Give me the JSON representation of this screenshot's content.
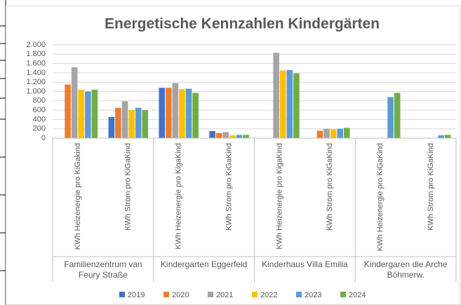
{
  "chart_data": {
    "type": "bar",
    "title": "Energetische Kennzahlen Kindergärten",
    "categories": [
      "KWh Heizenergie pro KiGakind",
      "KWh Strom pro KiGaKind",
      "KWh Heizenergie pro KigaKind",
      "KWh Strom pro KiGaKind",
      "KWh Heizenergie pro KigaKind",
      "KWh Strom pro KiGaKind",
      "KWh Heizenergie pro KiGaKind",
      "KWh Strom pro KiGaKind"
    ],
    "groups": [
      "Familienzentrum van Feury Straße",
      "Kindergarten Eggerfeld",
      "Kinderhaus Villa Emilia",
      "Kindergaren die Arche Böhmerw."
    ],
    "series": [
      {
        "name": "2019",
        "color": "#4472c4",
        "values": [
          null,
          450,
          1080,
          150,
          null,
          null,
          null,
          null
        ]
      },
      {
        "name": "2020",
        "color": "#ed7d31",
        "values": [
          1150,
          650,
          1080,
          110,
          null,
          160,
          null,
          null
        ]
      },
      {
        "name": "2021",
        "color": "#a5a5a5",
        "values": [
          1520,
          790,
          1180,
          130,
          1830,
          200,
          null,
          null
        ]
      },
      {
        "name": "2022",
        "color": "#ffc000",
        "values": [
          1040,
          600,
          1050,
          60,
          1450,
          190,
          null,
          null
        ]
      },
      {
        "name": "2023",
        "color": "#5b9bd5",
        "values": [
          1000,
          650,
          1060,
          70,
          1460,
          200,
          880,
          60
        ]
      },
      {
        "name": "2024",
        "color": "#70ad47",
        "values": [
          1040,
          600,
          970,
          70,
          1390,
          220,
          970,
          70
        ]
      }
    ],
    "ylim": [
      0,
      2000
    ],
    "yticks": [
      0,
      200,
      400,
      600,
      800,
      {
        "value": 1000,
        "label": "1.000"
      },
      {
        "value": 1200,
        "label": "1.200"
      },
      {
        "value": 1400,
        "label": "1.400"
      },
      {
        "value": 1600,
        "label": "1.600"
      },
      {
        "value": 1800,
        "label": "1.800"
      },
      {
        "value": 2000,
        "label": "2.000"
      }
    ],
    "legend": "bottom"
  }
}
